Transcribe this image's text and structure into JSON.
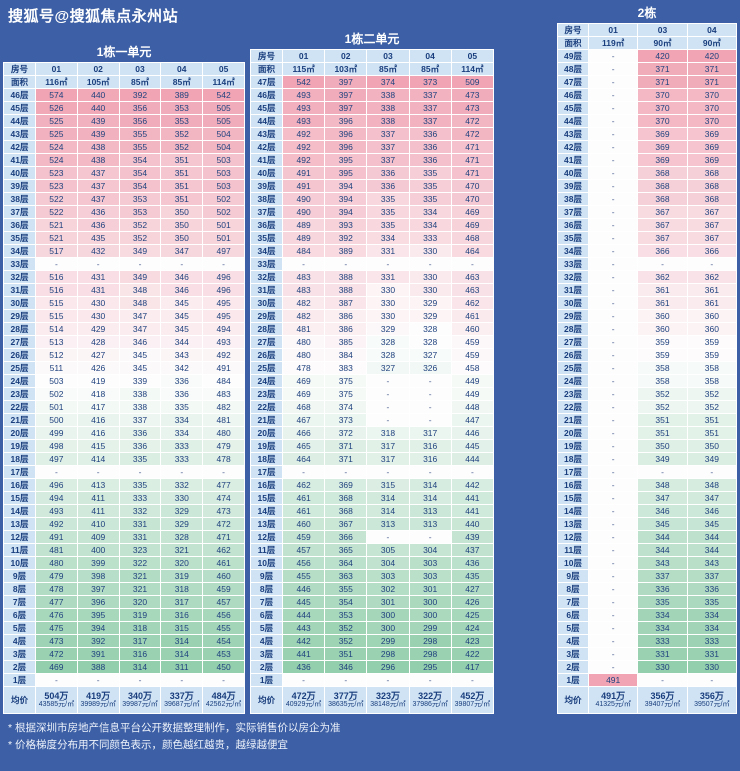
{
  "watermark": "搜狐号@搜狐焦点永州站",
  "labels": {
    "room_no": "房号",
    "area": "面积",
    "avg_price": "均价",
    "floor_suffix": "层",
    "empty": "-"
  },
  "footnotes": [
    "* 根据深圳市房地产信息平台公开数据整理制作，实际销售价以房企为准",
    "* 价格梯度分布用不同颜色表示，颜色越红越贵，越绿越便宜"
  ],
  "colors": {
    "background": "#3c5fa5",
    "header_bg": "#cfe3f5",
    "header_text": "#1a3e7d",
    "cell_text": "#21437f",
    "expensive": "#f0a4b4",
    "middle": "#fdfdfd",
    "cheap": "#94cfad",
    "border": "#ffffff"
  },
  "chart_data": {
    "type": "heatmap",
    "unit_note": "cell values are total price 万元, colored red=expensive green=cheap",
    "tables": [
      {
        "title": "1栋一单元",
        "room_numbers": [
          "01",
          "02",
          "03",
          "04",
          "05"
        ],
        "areas": [
          "116㎡",
          "105㎡",
          "85㎡",
          "85㎡",
          "114㎡"
        ],
        "floors": [
          46,
          45,
          44,
          43,
          42,
          41,
          40,
          39,
          38,
          37,
          36,
          35,
          34,
          33,
          32,
          31,
          30,
          29,
          28,
          27,
          26,
          25,
          24,
          23,
          22,
          21,
          20,
          19,
          18,
          17,
          16,
          15,
          14,
          13,
          12,
          11,
          10,
          9,
          8,
          7,
          6,
          5,
          4,
          3,
          2,
          1
        ],
        "prices": [
          [
            574,
            440,
            392,
            389,
            542
          ],
          [
            526,
            440,
            356,
            353,
            505
          ],
          [
            525,
            439,
            356,
            353,
            505
          ],
          [
            525,
            439,
            355,
            352,
            504
          ],
          [
            524,
            438,
            355,
            352,
            504
          ],
          [
            524,
            438,
            354,
            351,
            503
          ],
          [
            523,
            437,
            354,
            351,
            503
          ],
          [
            523,
            437,
            354,
            351,
            503
          ],
          [
            522,
            437,
            353,
            351,
            502
          ],
          [
            522,
            436,
            353,
            350,
            502
          ],
          [
            521,
            436,
            352,
            350,
            501
          ],
          [
            521,
            435,
            352,
            350,
            501
          ],
          [
            517,
            432,
            349,
            347,
            497
          ],
          [
            "-",
            "-",
            "-",
            "-",
            "-"
          ],
          [
            516,
            431,
            349,
            346,
            496
          ],
          [
            516,
            431,
            348,
            346,
            496
          ],
          [
            515,
            430,
            348,
            345,
            495
          ],
          [
            515,
            430,
            347,
            345,
            495
          ],
          [
            514,
            429,
            347,
            345,
            494
          ],
          [
            513,
            428,
            346,
            344,
            493
          ],
          [
            512,
            427,
            345,
            343,
            492
          ],
          [
            511,
            426,
            345,
            342,
            491
          ],
          [
            503,
            419,
            339,
            336,
            484
          ],
          [
            502,
            418,
            338,
            336,
            483
          ],
          [
            501,
            417,
            338,
            335,
            482
          ],
          [
            500,
            416,
            337,
            334,
            481
          ],
          [
            499,
            416,
            336,
            334,
            480
          ],
          [
            498,
            415,
            336,
            333,
            479
          ],
          [
            497,
            414,
            335,
            333,
            478
          ],
          [
            "-",
            "-",
            "-",
            "-",
            "-"
          ],
          [
            496,
            413,
            335,
            332,
            477
          ],
          [
            494,
            411,
            333,
            330,
            474
          ],
          [
            493,
            411,
            332,
            329,
            473
          ],
          [
            492,
            410,
            331,
            329,
            472
          ],
          [
            491,
            409,
            331,
            328,
            471
          ],
          [
            481,
            400,
            323,
            321,
            462
          ],
          [
            480,
            399,
            322,
            320,
            461
          ],
          [
            479,
            398,
            321,
            319,
            460
          ],
          [
            478,
            397,
            321,
            318,
            459
          ],
          [
            477,
            396,
            320,
            317,
            457
          ],
          [
            476,
            395,
            319,
            316,
            456
          ],
          [
            475,
            394,
            318,
            315,
            455
          ],
          [
            473,
            392,
            317,
            314,
            454
          ],
          [
            472,
            391,
            316,
            314,
            453
          ],
          [
            469,
            388,
            314,
            311,
            450
          ],
          [
            "-",
            "-",
            "-",
            "-",
            "-"
          ]
        ],
        "avg": [
          {
            "total": "504万",
            "unit": "43585元/㎡"
          },
          {
            "total": "419万",
            "unit": "39989元/㎡"
          },
          {
            "total": "340万",
            "unit": "39987元/㎡"
          },
          {
            "total": "337万",
            "unit": "39687元/㎡"
          },
          {
            "total": "484万",
            "unit": "42562元/㎡"
          }
        ]
      },
      {
        "title": "1栋二单元",
        "room_numbers": [
          "01",
          "02",
          "03",
          "04",
          "05"
        ],
        "areas": [
          "115㎡",
          "103㎡",
          "85㎡",
          "85㎡",
          "114㎡"
        ],
        "floors": [
          47,
          46,
          45,
          44,
          43,
          42,
          41,
          40,
          39,
          38,
          37,
          36,
          35,
          34,
          33,
          32,
          31,
          30,
          29,
          28,
          27,
          26,
          25,
          24,
          23,
          22,
          21,
          20,
          19,
          18,
          17,
          16,
          15,
          14,
          13,
          12,
          11,
          10,
          9,
          8,
          7,
          6,
          5,
          4,
          3,
          2,
          1
        ],
        "prices": [
          [
            542,
            397,
            374,
            373,
            509
          ],
          [
            493,
            397,
            338,
            337,
            473
          ],
          [
            493,
            397,
            338,
            337,
            473
          ],
          [
            493,
            396,
            338,
            337,
            472
          ],
          [
            492,
            396,
            337,
            336,
            472
          ],
          [
            492,
            396,
            337,
            336,
            471
          ],
          [
            492,
            395,
            337,
            336,
            471
          ],
          [
            491,
            395,
            336,
            335,
            471
          ],
          [
            491,
            394,
            336,
            335,
            470
          ],
          [
            490,
            394,
            335,
            335,
            470
          ],
          [
            490,
            394,
            335,
            334,
            469
          ],
          [
            489,
            393,
            335,
            334,
            469
          ],
          [
            489,
            392,
            334,
            333,
            468
          ],
          [
            484,
            389,
            331,
            330,
            464
          ],
          [
            "-",
            "-",
            "-",
            "-",
            "-"
          ],
          [
            483,
            388,
            331,
            330,
            463
          ],
          [
            483,
            388,
            330,
            330,
            463
          ],
          [
            482,
            387,
            330,
            329,
            462
          ],
          [
            482,
            386,
            330,
            329,
            461
          ],
          [
            481,
            386,
            329,
            328,
            460
          ],
          [
            480,
            385,
            328,
            328,
            459
          ],
          [
            480,
            384,
            328,
            327,
            459
          ],
          [
            478,
            383,
            327,
            326,
            458
          ],
          [
            469,
            375,
            "-",
            "-",
            449
          ],
          [
            469,
            375,
            "-",
            "-",
            449
          ],
          [
            468,
            374,
            "-",
            "-",
            448
          ],
          [
            467,
            373,
            "-",
            "-",
            447
          ],
          [
            466,
            372,
            318,
            317,
            446
          ],
          [
            465,
            371,
            317,
            316,
            445
          ],
          [
            464,
            371,
            317,
            316,
            444
          ],
          [
            "-",
            "-",
            "-",
            "-",
            "-"
          ],
          [
            462,
            369,
            315,
            314,
            442
          ],
          [
            461,
            368,
            314,
            314,
            441
          ],
          [
            461,
            368,
            314,
            313,
            441
          ],
          [
            460,
            367,
            313,
            313,
            440
          ],
          [
            459,
            366,
            "-",
            "-",
            439
          ],
          [
            457,
            365,
            305,
            304,
            437
          ],
          [
            456,
            364,
            304,
            303,
            436
          ],
          [
            455,
            363,
            303,
            303,
            435
          ],
          [
            446,
            355,
            302,
            301,
            427
          ],
          [
            445,
            354,
            301,
            300,
            426
          ],
          [
            444,
            353,
            300,
            300,
            425
          ],
          [
            443,
            352,
            300,
            299,
            424
          ],
          [
            442,
            352,
            299,
            298,
            423
          ],
          [
            441,
            351,
            298,
            298,
            422
          ],
          [
            436,
            346,
            296,
            295,
            417
          ],
          [
            "-",
            "-",
            "-",
            "-",
            "-"
          ]
        ],
        "avg": [
          {
            "total": "472万",
            "unit": "40929元/㎡"
          },
          {
            "total": "377万",
            "unit": "38635元/㎡"
          },
          {
            "total": "323万",
            "unit": "38148元/㎡"
          },
          {
            "total": "322万",
            "unit": "37986元/㎡"
          },
          {
            "total": "452万",
            "unit": "39807元/㎡"
          }
        ]
      },
      {
        "title": "2栋",
        "room_numbers": [
          "01",
          "03",
          "04"
        ],
        "areas": [
          "119㎡",
          "90㎡",
          "90㎡"
        ],
        "floors": [
          49,
          48,
          47,
          46,
          45,
          44,
          43,
          42,
          41,
          40,
          39,
          38,
          37,
          36,
          35,
          34,
          33,
          32,
          31,
          30,
          29,
          28,
          27,
          26,
          25,
          24,
          23,
          22,
          21,
          20,
          19,
          18,
          17,
          16,
          15,
          14,
          13,
          12,
          11,
          10,
          9,
          8,
          7,
          6,
          5,
          4,
          3,
          2,
          1
        ],
        "prices": [
          [
            "-",
            420,
            420
          ],
          [
            "-",
            371,
            371
          ],
          [
            "-",
            371,
            371
          ],
          [
            "-",
            370,
            370
          ],
          [
            "-",
            370,
            370
          ],
          [
            "-",
            370,
            370
          ],
          [
            "-",
            369,
            369
          ],
          [
            "-",
            369,
            369
          ],
          [
            "-",
            369,
            369
          ],
          [
            "-",
            368,
            368
          ],
          [
            "-",
            368,
            368
          ],
          [
            "-",
            368,
            368
          ],
          [
            "-",
            367,
            367
          ],
          [
            "-",
            367,
            367
          ],
          [
            "-",
            367,
            367
          ],
          [
            "-",
            366,
            366
          ],
          [
            "-",
            "-",
            "-"
          ],
          [
            "-",
            362,
            362
          ],
          [
            "-",
            361,
            361
          ],
          [
            "-",
            361,
            361
          ],
          [
            "-",
            360,
            360
          ],
          [
            "-",
            360,
            360
          ],
          [
            "-",
            359,
            359
          ],
          [
            "-",
            359,
            359
          ],
          [
            "-",
            358,
            358
          ],
          [
            "-",
            358,
            358
          ],
          [
            "-",
            352,
            352
          ],
          [
            "-",
            352,
            352
          ],
          [
            "-",
            351,
            351
          ],
          [
            "-",
            351,
            351
          ],
          [
            "-",
            350,
            350
          ],
          [
            "-",
            349,
            349
          ],
          [
            "-",
            "-",
            "-"
          ],
          [
            "-",
            348,
            348
          ],
          [
            "-",
            347,
            347
          ],
          [
            "-",
            346,
            346
          ],
          [
            "-",
            345,
            345
          ],
          [
            "-",
            344,
            344
          ],
          [
            "-",
            344,
            344
          ],
          [
            "-",
            343,
            343
          ],
          [
            "-",
            337,
            337
          ],
          [
            "-",
            336,
            336
          ],
          [
            "-",
            335,
            335
          ],
          [
            "-",
            334,
            334
          ],
          [
            "-",
            334,
            334
          ],
          [
            "-",
            333,
            333
          ],
          [
            "-",
            331,
            331
          ],
          [
            "-",
            330,
            330
          ],
          [
            491,
            "-",
            "-"
          ]
        ],
        "avg": [
          {
            "total": "491万",
            "unit": "41325元/㎡"
          },
          {
            "total": "356万",
            "unit": "39407元/㎡"
          },
          {
            "total": "356万",
            "unit": "39507元/㎡"
          }
        ]
      }
    ]
  }
}
